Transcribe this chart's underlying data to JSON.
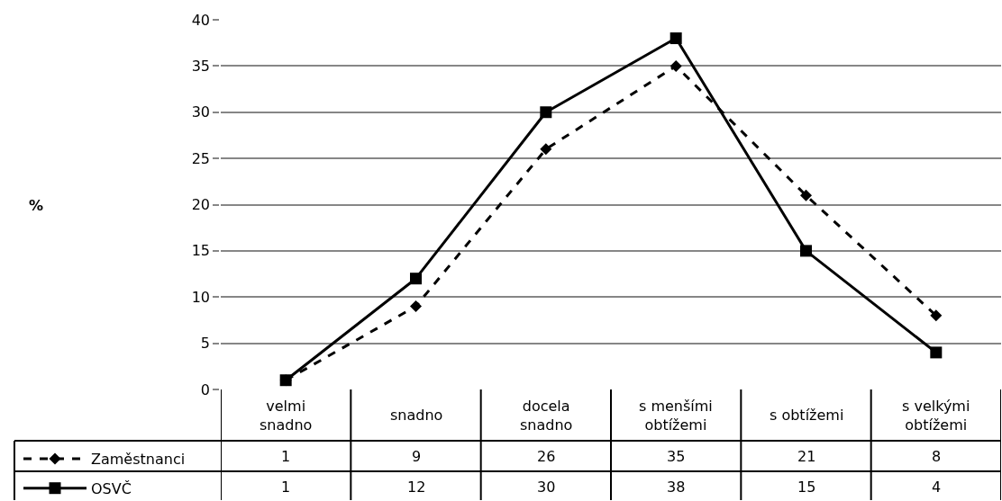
{
  "chart_data": {
    "type": "line",
    "categories": [
      "velmi snadno",
      "snadno",
      "docela snadno",
      "s menšími obtížemi",
      "s obtížemi",
      "s velkými obtížemi"
    ],
    "series": [
      {
        "name": "Zaměstnanci",
        "color": "#000000",
        "values": [
          1,
          9,
          26,
          35,
          21,
          8
        ],
        "marker": "diamond",
        "line_style": "dashed"
      },
      {
        "name": "OSVČ",
        "color": "#000000",
        "values": [
          1,
          12,
          30,
          38,
          15,
          4
        ],
        "marker": "square",
        "line_style": "solid"
      }
    ],
    "annotations": [
      "%"
    ],
    "ylim": [
      0,
      40
    ],
    "yticks": [
      0,
      5,
      10,
      15,
      20,
      25,
      30,
      35,
      40
    ],
    "grid": "y",
    "legend": "bottom left",
    "data_labels": true
  }
}
